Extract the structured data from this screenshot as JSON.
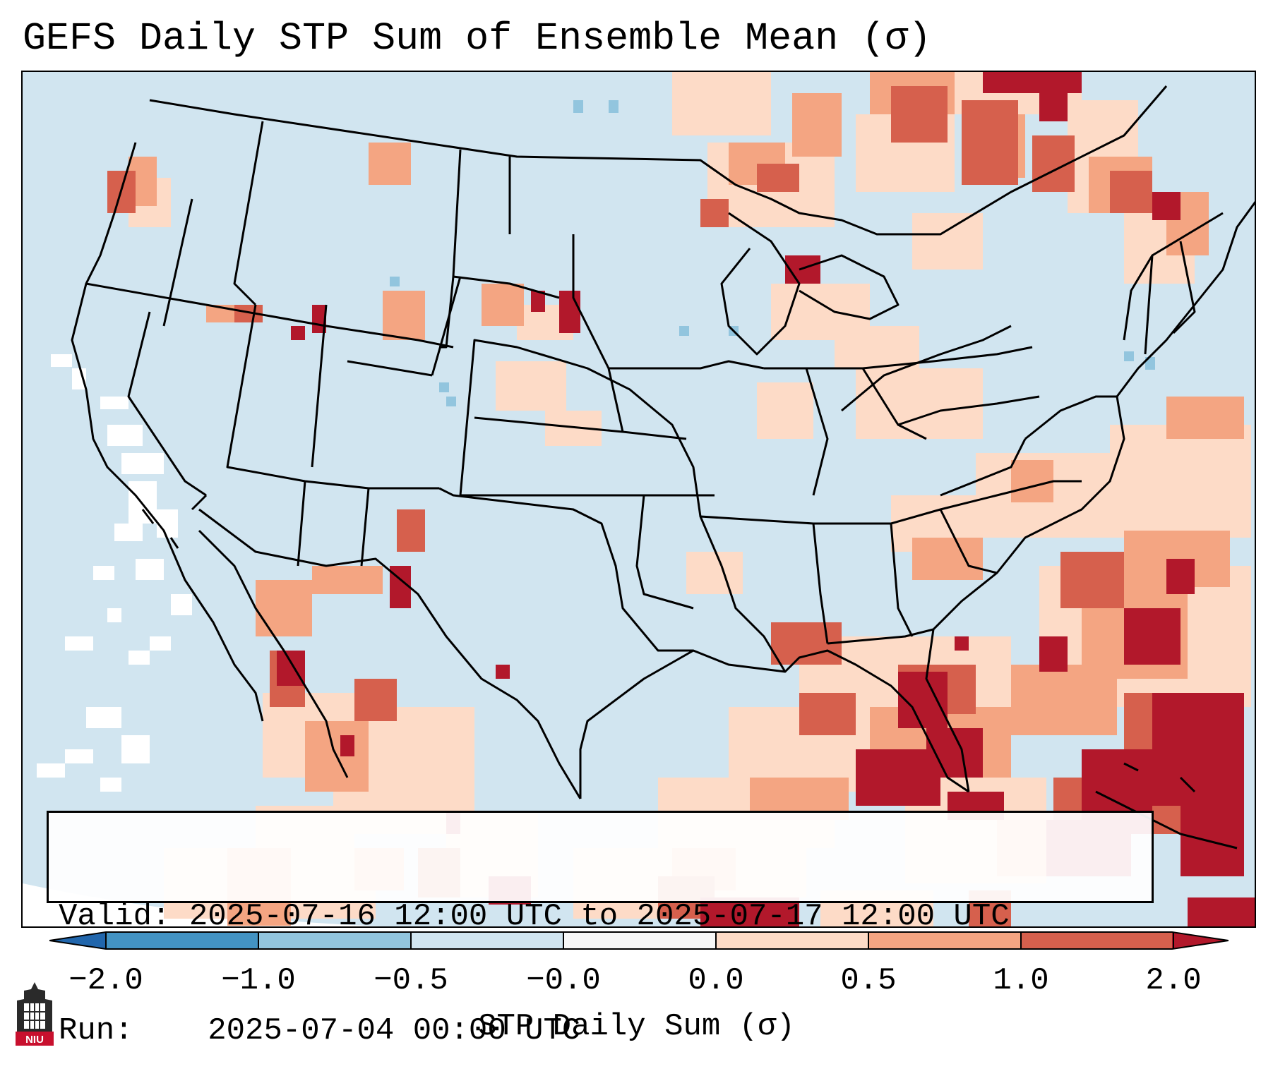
{
  "title": "GEFS Daily STP Sum of Ensemble Mean (σ)",
  "info": {
    "valid_label": "Valid:",
    "valid_value": "2025-07-16 12:00 UTC to 2025-07-17 12:00 UTC",
    "run_label": "Run:",
    "run_value": "2025-07-04 00:00 UTC"
  },
  "colorbar": {
    "label": "STP Daily Sum (σ)",
    "ticks": [
      "−2.0",
      "−1.0",
      "−0.5",
      "−0.0",
      "0.0",
      "0.5",
      "1.0",
      "2.0"
    ],
    "bins": [
      {
        "range": "< -2.0",
        "color": "#2166ac"
      },
      {
        "range": "-2.0 to -1.0",
        "color": "#4393c3"
      },
      {
        "range": "-1.0 to -0.5",
        "color": "#92c5de"
      },
      {
        "range": "-0.5 to -0.0",
        "color": "#d1e5f0"
      },
      {
        "range": "-0.0 to 0.0",
        "color": "#f7f7f7"
      },
      {
        "range": "0.0 to 0.5",
        "color": "#fddbc7"
      },
      {
        "range": "0.5 to 1.0",
        "color": "#f4a582"
      },
      {
        "range": "1.0 to 2.0",
        "color": "#d6604d"
      },
      {
        "range": "> 2.0",
        "color": "#b2182b"
      }
    ]
  },
  "colors": {
    "background_field": "#d1e5f0",
    "no_data": "#ffffff",
    "frame": "#000000"
  },
  "logo": {
    "text": "NIU",
    "icon": "university-tower-icon"
  }
}
